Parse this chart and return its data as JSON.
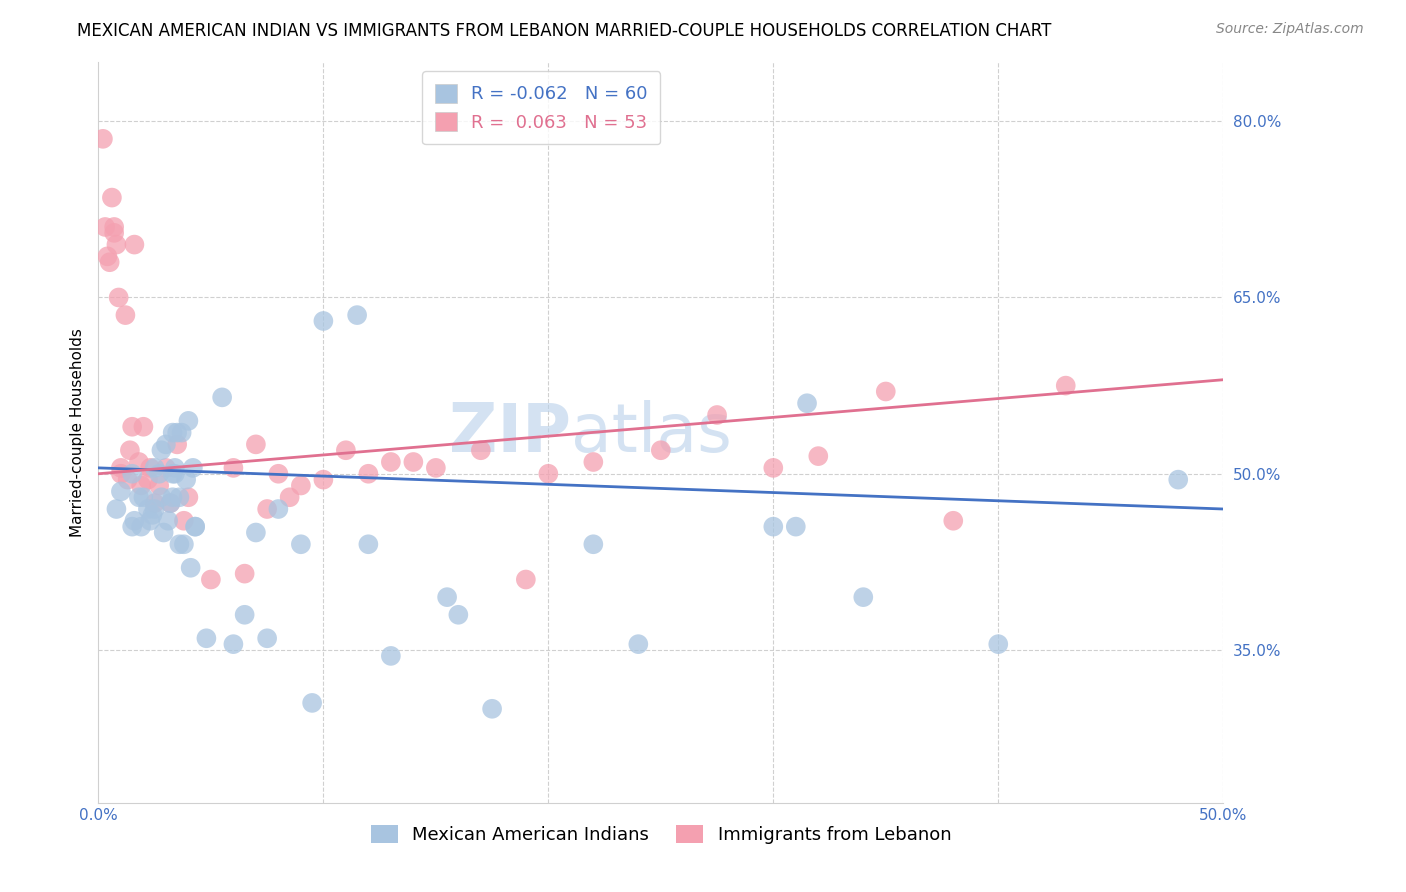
{
  "title": "MEXICAN AMERICAN INDIAN VS IMMIGRANTS FROM LEBANON MARRIED-COUPLE HOUSEHOLDS CORRELATION CHART",
  "source": "Source: ZipAtlas.com",
  "ylabel": "Married-couple Households",
  "xlim": [
    0.0,
    50.0
  ],
  "ylim": [
    22.0,
    85.0
  ],
  "xticks": [
    0.0,
    10.0,
    20.0,
    30.0,
    40.0,
    50.0
  ],
  "xticklabels": [
    "0.0%",
    "",
    "",
    "",
    "",
    "50.0%"
  ],
  "yticks_right": [
    35.0,
    50.0,
    65.0,
    80.0
  ],
  "ytick_labels_right": [
    "35.0%",
    "50.0%",
    "65.0%",
    "80.0%"
  ],
  "blue_color": "#a8c4e0",
  "blue_line_color": "#4472c4",
  "pink_color": "#f4a0b0",
  "pink_line_color": "#e07090",
  "legend_R_blue": "-0.062",
  "legend_N_blue": "60",
  "legend_R_pink": "0.063",
  "legend_N_pink": "53",
  "watermark_zip": "ZIP",
  "watermark_atlas": "atlas",
  "legend_label_blue": "Mexican American Indians",
  "legend_label_pink": "Immigrants from Lebanon",
  "blue_x": [
    0.8,
    1.0,
    1.5,
    1.5,
    1.6,
    1.8,
    1.9,
    2.0,
    2.2,
    2.3,
    2.4,
    2.5,
    2.5,
    2.7,
    2.8,
    2.8,
    2.9,
    3.0,
    3.1,
    3.2,
    3.3,
    3.3,
    3.3,
    3.4,
    3.4,
    3.5,
    3.6,
    3.6,
    3.7,
    3.8,
    3.9,
    4.0,
    4.1,
    4.2,
    4.3,
    4.3,
    4.8,
    5.5,
    6.0,
    6.5,
    7.0,
    7.5,
    8.0,
    9.0,
    9.5,
    10.0,
    11.5,
    12.0,
    13.0,
    15.5,
    16.0,
    17.5,
    22.0,
    24.0,
    30.0,
    31.0,
    31.5,
    34.0,
    40.0,
    48.0
  ],
  "blue_y": [
    47.0,
    48.5,
    45.5,
    50.0,
    46.0,
    48.0,
    45.5,
    48.0,
    47.0,
    46.0,
    46.5,
    50.5,
    47.0,
    50.0,
    52.0,
    48.0,
    45.0,
    52.5,
    46.0,
    47.5,
    53.5,
    50.0,
    48.0,
    50.5,
    50.0,
    53.5,
    48.0,
    44.0,
    53.5,
    44.0,
    49.5,
    54.5,
    42.0,
    50.5,
    45.5,
    45.5,
    36.0,
    56.5,
    35.5,
    38.0,
    45.0,
    36.0,
    47.0,
    44.0,
    30.5,
    63.0,
    63.5,
    44.0,
    34.5,
    39.5,
    38.0,
    30.0,
    44.0,
    35.5,
    45.5,
    45.5,
    56.0,
    39.5,
    35.5,
    49.5
  ],
  "pink_x": [
    0.2,
    0.3,
    0.4,
    0.5,
    0.6,
    0.7,
    0.7,
    0.8,
    0.9,
    1.0,
    1.0,
    1.2,
    1.3,
    1.4,
    1.5,
    1.6,
    1.8,
    1.9,
    2.0,
    2.2,
    2.3,
    2.5,
    2.7,
    3.0,
    3.2,
    3.5,
    3.8,
    4.0,
    5.0,
    6.0,
    6.5,
    7.0,
    7.5,
    8.0,
    8.5,
    9.0,
    10.0,
    11.0,
    12.0,
    13.0,
    14.0,
    15.0,
    17.0,
    19.0,
    20.0,
    22.0,
    25.0,
    27.5,
    30.0,
    32.0,
    35.0,
    38.0,
    43.0
  ],
  "pink_y": [
    78.5,
    71.0,
    68.5,
    68.0,
    73.5,
    70.5,
    71.0,
    69.5,
    65.0,
    50.5,
    50.0,
    63.5,
    49.5,
    52.0,
    54.0,
    69.5,
    51.0,
    49.0,
    54.0,
    49.5,
    50.5,
    47.5,
    49.0,
    50.5,
    47.5,
    52.5,
    46.0,
    48.0,
    41.0,
    50.5,
    41.5,
    52.5,
    47.0,
    50.0,
    48.0,
    49.0,
    49.5,
    52.0,
    50.0,
    51.0,
    51.0,
    50.5,
    52.0,
    41.0,
    50.0,
    51.0,
    52.0,
    55.0,
    50.5,
    51.5,
    57.0,
    46.0,
    57.5
  ],
  "blue_trend_x": [
    0.0,
    50.0
  ],
  "blue_trend_y": [
    50.5,
    47.0
  ],
  "pink_trend_x": [
    0.0,
    50.0
  ],
  "pink_trend_y": [
    50.0,
    58.0
  ],
  "title_fontsize": 12,
  "source_fontsize": 10,
  "axis_label_fontsize": 11,
  "tick_fontsize": 11,
  "legend_fontsize": 13,
  "watermark_fontsize": 48,
  "background_color": "#ffffff",
  "grid_color": "#d0d0d0",
  "right_tick_color": "#4472c4"
}
